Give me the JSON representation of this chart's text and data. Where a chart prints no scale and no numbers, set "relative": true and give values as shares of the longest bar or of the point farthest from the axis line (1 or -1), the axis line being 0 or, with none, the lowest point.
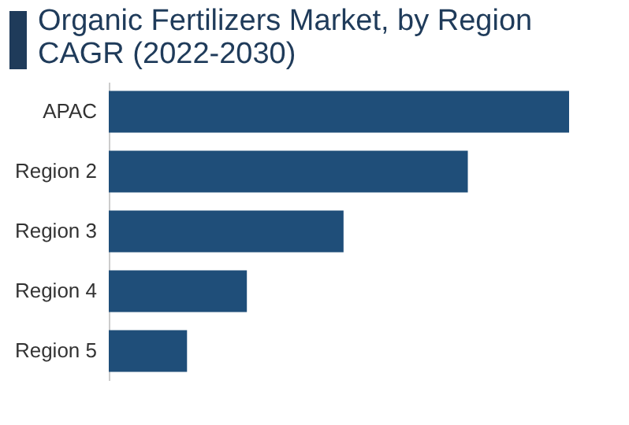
{
  "chart_data": {
    "type": "bar",
    "orientation": "horizontal",
    "relative": true,
    "title": "Organic Fertilizers Market, by Region CAGR (2022-2030)",
    "categories": [
      "APAC",
      "Region 2",
      "Region 3",
      "Region 4",
      "Region 5"
    ],
    "values": [
      1,
      0.78,
      0.51,
      0.3,
      0.17
    ],
    "color": "#1f4e79"
  }
}
